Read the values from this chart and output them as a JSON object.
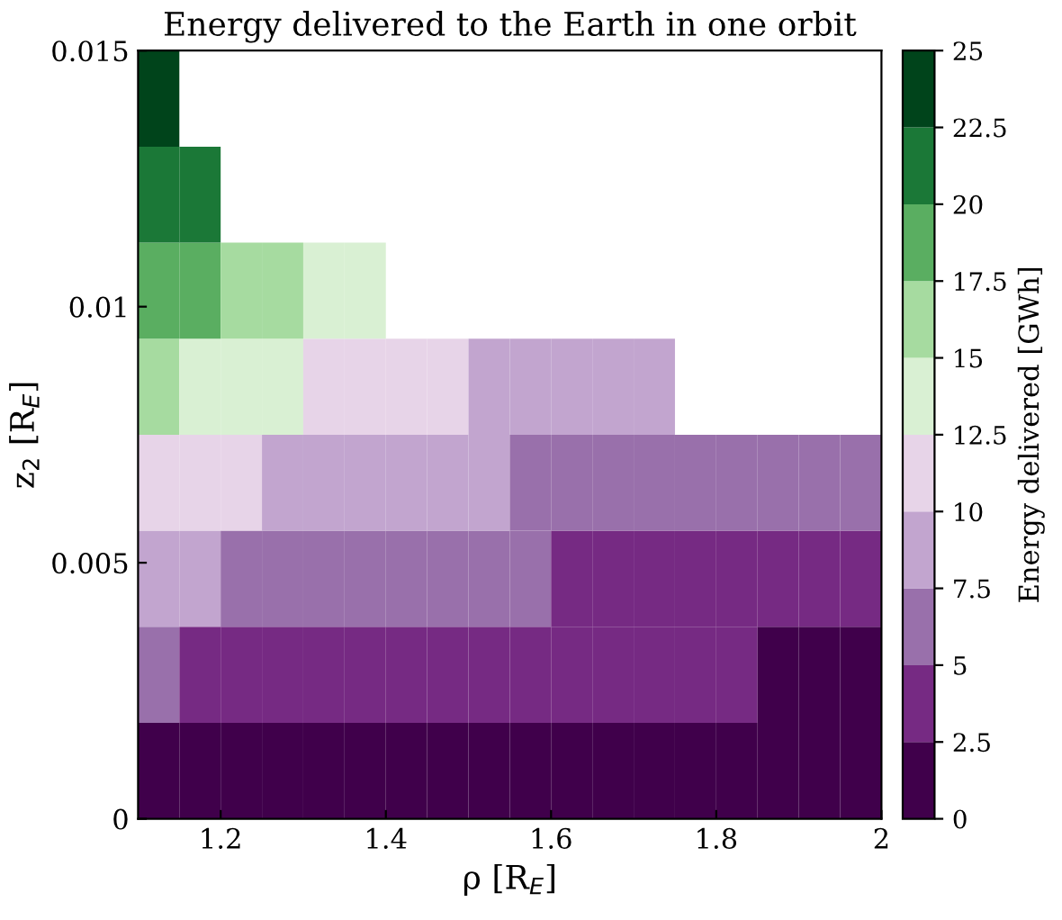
{
  "chart_data": {
    "type": "heatmap",
    "title": "Energy delivered to the Earth in one orbit",
    "xlabel": "ρ [R$_{E}$]",
    "ylabel": "z$_{2}$ [R$_{E}$]",
    "clabel": "Energy delivered [GWh]",
    "xlim": [
      1.1,
      2
    ],
    "xticks": [
      1.2,
      1.4,
      1.6,
      1.8,
      2
    ],
    "ylim": [
      0,
      0.015
    ],
    "yticks": [
      0,
      0.005,
      0.01,
      0.015
    ],
    "clim": [
      0,
      25
    ],
    "cticks": [
      0,
      2.5,
      5,
      7.5,
      10,
      12.5,
      15,
      17.5,
      20,
      22.5,
      25
    ],
    "colors": [
      "#40004b",
      "#762a83",
      "#9970ab",
      "#c2a5cf",
      "#e7d4e8",
      "#d9f0d3",
      "#a6dba0",
      "#5aae61",
      "#1b7837",
      "#00441b"
    ],
    "cells": [
      [
        23.75,
        null,
        null,
        null,
        null,
        null,
        null,
        null,
        null,
        null,
        null,
        null,
        null,
        null,
        null,
        null,
        null,
        null
      ],
      [
        21.25,
        21.25,
        null,
        null,
        null,
        null,
        null,
        null,
        null,
        null,
        null,
        null,
        null,
        null,
        null,
        null,
        null,
        null
      ],
      [
        18.75,
        18.75,
        16.25,
        16.25,
        13.75,
        13.75,
        null,
        null,
        null,
        null,
        null,
        null,
        null,
        null,
        null,
        null,
        null,
        null
      ],
      [
        16.25,
        13.75,
        13.75,
        13.75,
        11.25,
        11.25,
        11.25,
        11.25,
        8.75,
        8.75,
        8.75,
        8.75,
        8.75,
        null,
        null,
        null,
        null,
        null
      ],
      [
        11.25,
        11.25,
        11.25,
        8.75,
        8.75,
        8.75,
        8.75,
        8.75,
        8.75,
        6.25,
        6.25,
        6.25,
        6.25,
        6.25,
        6.25,
        6.25,
        6.25,
        6.25
      ],
      [
        8.75,
        8.75,
        6.25,
        6.25,
        6.25,
        6.25,
        6.25,
        6.25,
        6.25,
        6.25,
        3.75,
        3.75,
        3.75,
        3.75,
        3.75,
        3.75,
        3.75,
        3.75
      ],
      [
        6.25,
        3.75,
        3.75,
        3.75,
        3.75,
        3.75,
        3.75,
        3.75,
        3.75,
        3.75,
        3.75,
        3.75,
        3.75,
        3.75,
        3.75,
        1.25,
        1.25,
        1.25
      ],
      [
        1.25,
        1.25,
        1.25,
        1.25,
        1.25,
        1.25,
        1.25,
        1.25,
        1.25,
        1.25,
        1.25,
        1.25,
        1.25,
        1.25,
        1.25,
        1.25,
        1.25,
        1.25
      ]
    ]
  }
}
